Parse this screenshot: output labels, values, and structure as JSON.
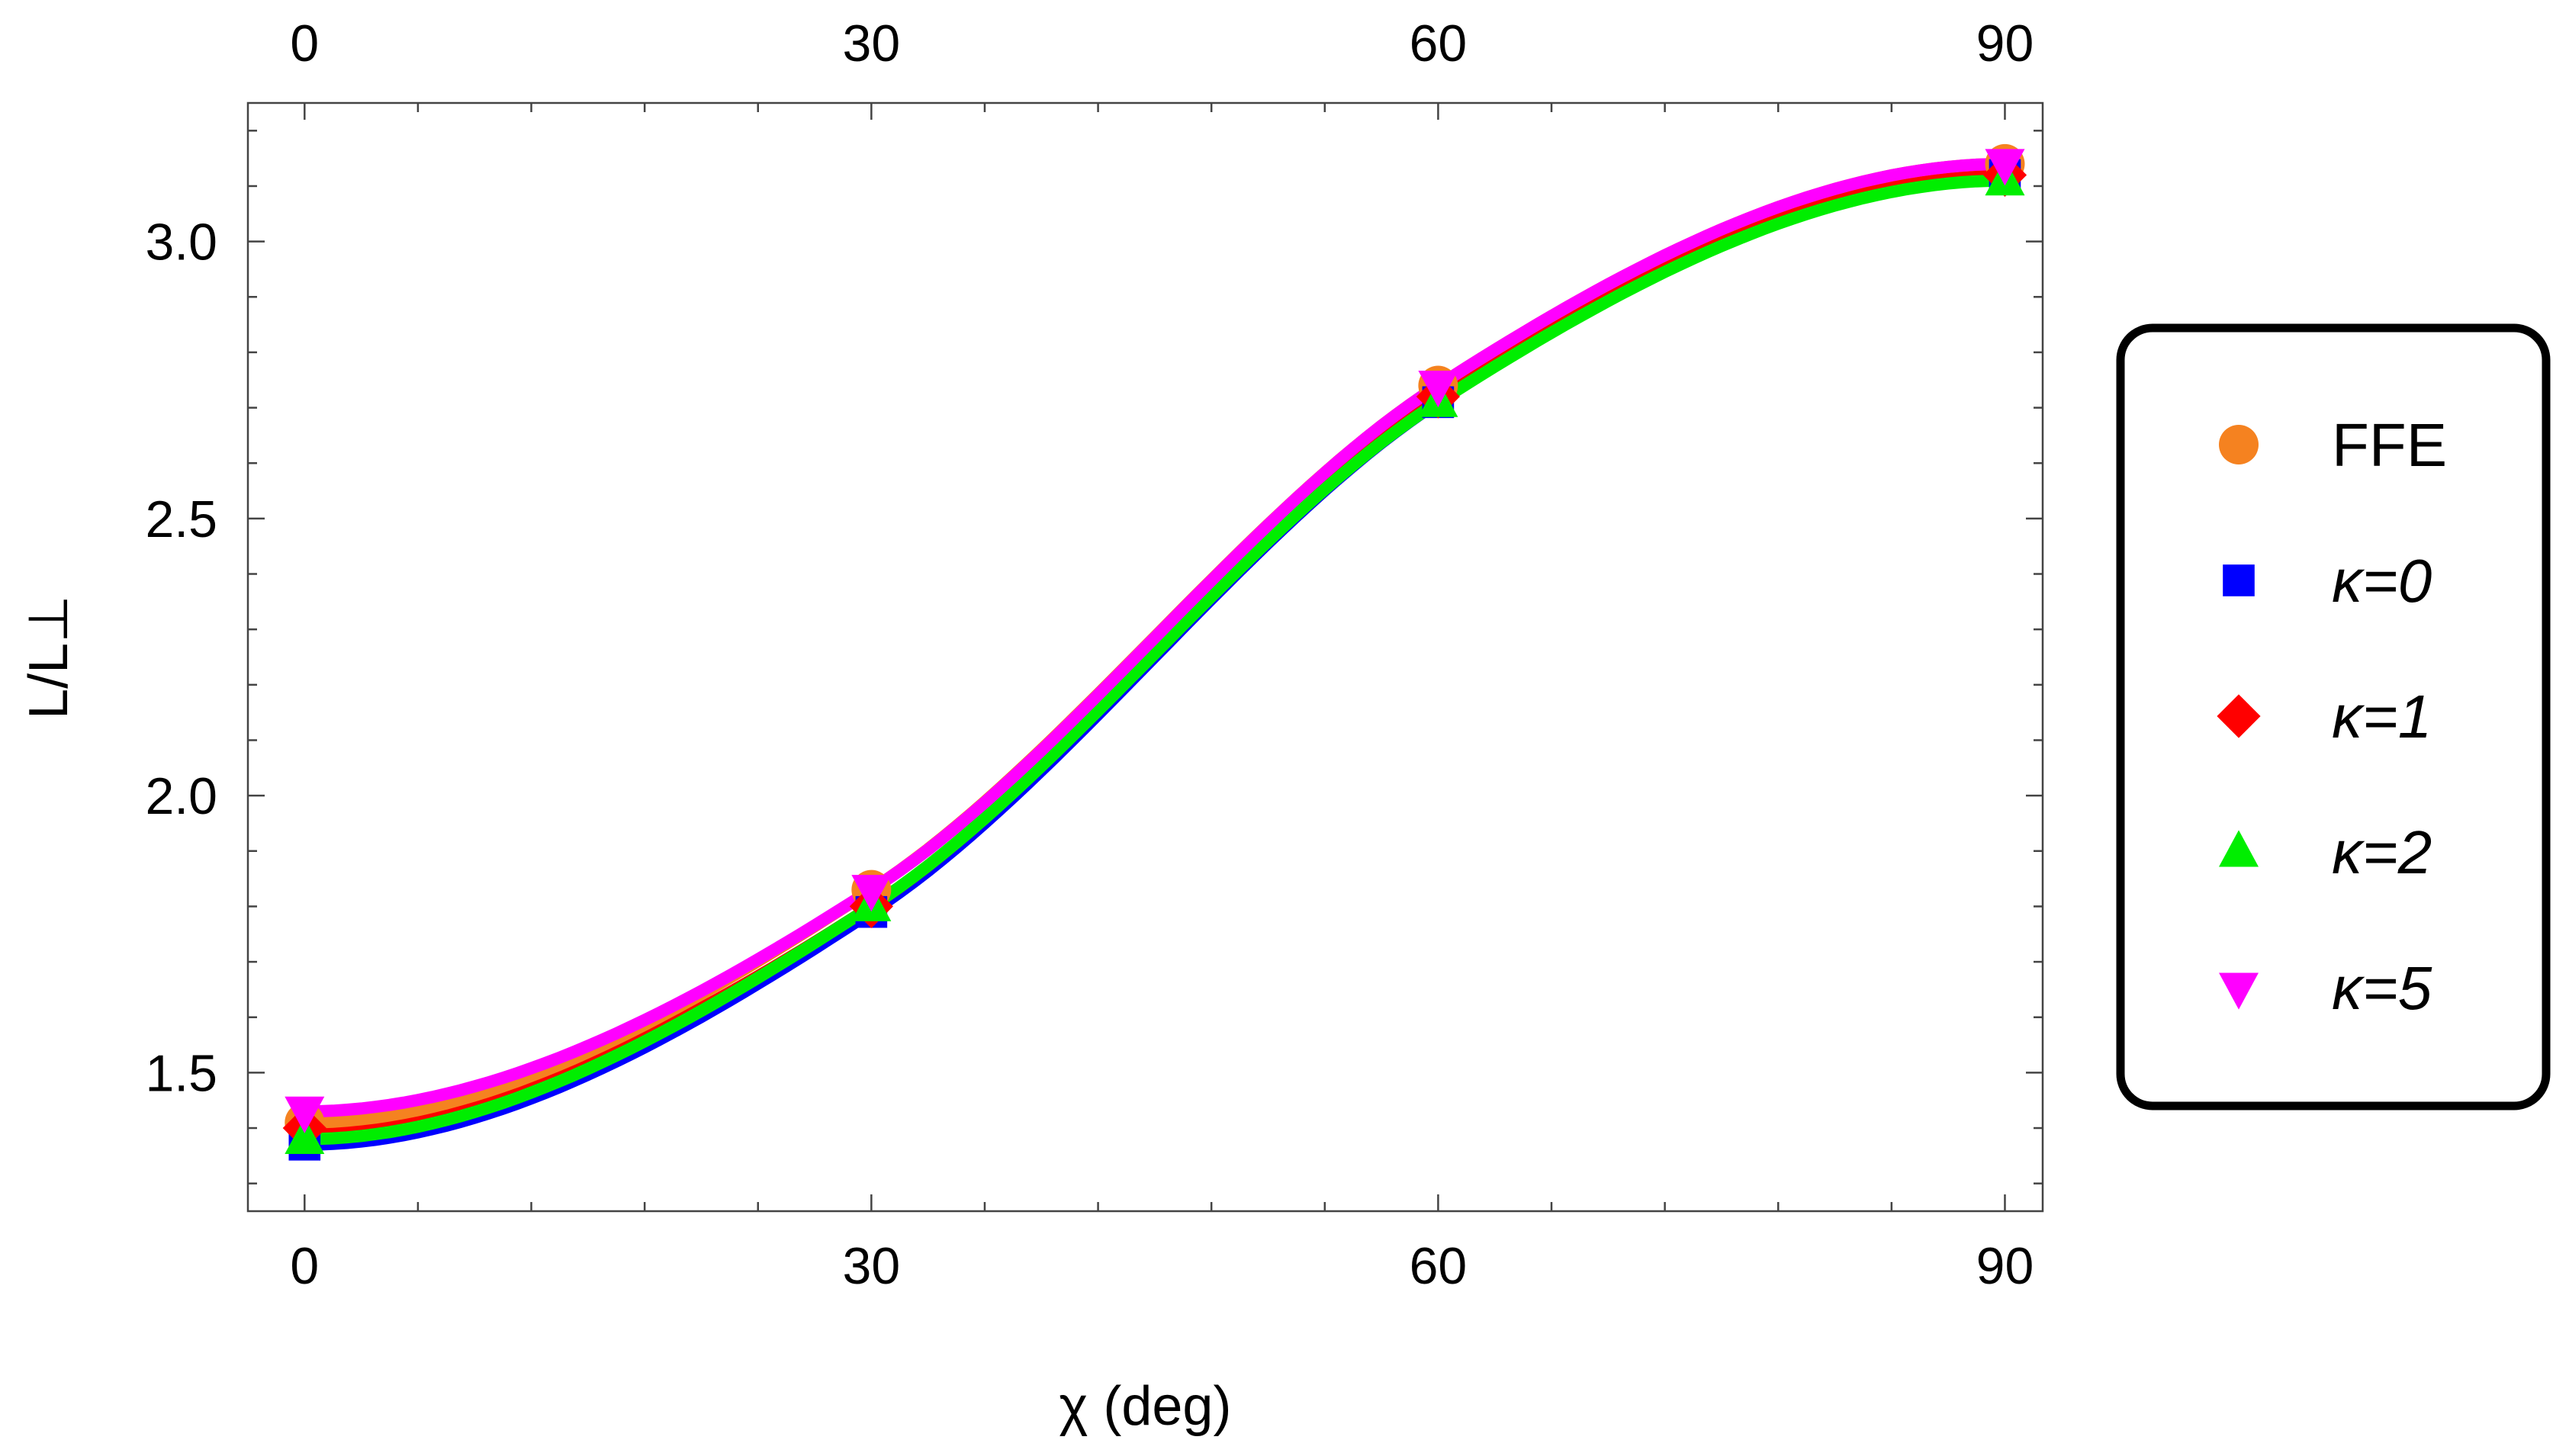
{
  "chart_data": {
    "type": "line",
    "xlabel": "χ (deg)",
    "ylabel": "L/L⊥",
    "xlim": [
      -3,
      92
    ],
    "ylim": [
      1.25,
      3.25
    ],
    "xticks": [
      0,
      30,
      60,
      90
    ],
    "yticks": [
      1.5,
      2.0,
      2.5,
      3.0
    ],
    "ytick_labels": [
      "1.5",
      "2.0",
      "2.5",
      "3.0"
    ],
    "top_axis_ticks": [
      0,
      30,
      60,
      90
    ],
    "grid": false,
    "legend_position": "right",
    "x": [
      0,
      30,
      60,
      90
    ],
    "series": [
      {
        "name": "FFE",
        "marker": "circle",
        "color": "#f58220",
        "values": [
          1.41,
          1.83,
          2.74,
          3.14
        ]
      },
      {
        "name": "κ=0",
        "marker": "square",
        "color": "#0000ff",
        "values": [
          1.37,
          1.79,
          2.71,
          3.12
        ]
      },
      {
        "name": "κ=1",
        "marker": "diamond",
        "color": "#ff0000",
        "values": [
          1.4,
          1.8,
          2.72,
          3.12
        ]
      },
      {
        "name": "κ=2",
        "marker": "triangle-up",
        "color": "#00ee00",
        "values": [
          1.38,
          1.8,
          2.71,
          3.11
        ]
      },
      {
        "name": "κ=5",
        "marker": "triangle-down",
        "color": "#ff00ff",
        "values": [
          1.43,
          1.83,
          2.74,
          3.14
        ]
      }
    ]
  }
}
